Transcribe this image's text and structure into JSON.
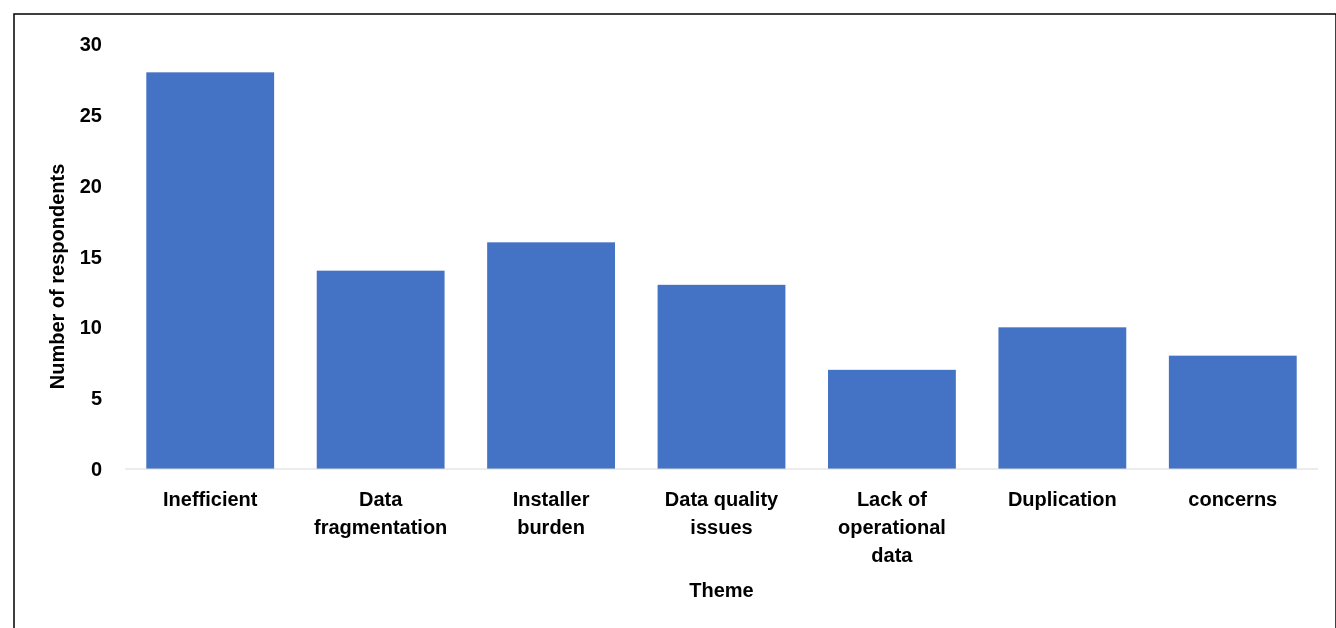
{
  "chart_data": {
    "type": "bar",
    "xlabel": "Theme",
    "ylabel": "Number of respondents",
    "categories": [
      "Inefficient",
      "Data fragmentation",
      "Installer burden",
      "Data quality issues",
      "Lack of operational data",
      "Duplication",
      "concerns"
    ],
    "values": [
      28,
      14,
      16,
      13,
      7,
      10,
      8
    ],
    "color": "#4472c4",
    "ylim": [
      0,
      30
    ],
    "yticks": [
      0,
      5,
      10,
      15,
      20,
      25,
      30
    ],
    "grid": false
  }
}
